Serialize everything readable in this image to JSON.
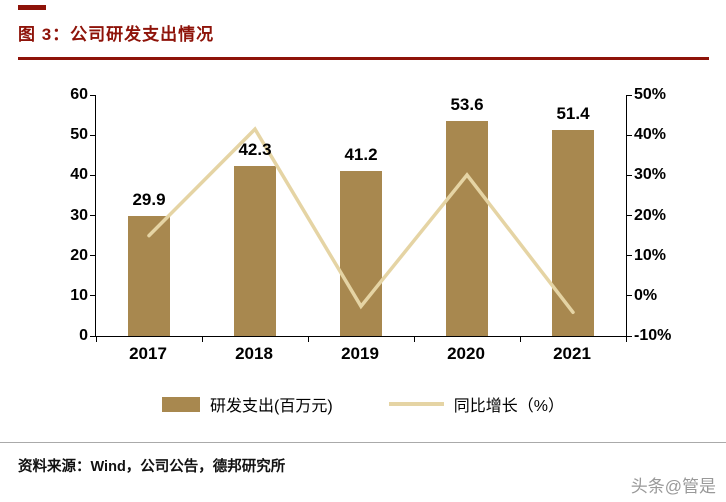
{
  "header": {
    "title": "图 3：公司研发支出情况"
  },
  "chart_data": {
    "type": "combo-bar-line",
    "title": "公司研发支出情况",
    "categories": [
      "2017",
      "2018",
      "2019",
      "2020",
      "2021"
    ],
    "series": [
      {
        "name": "研发支出(百万元)",
        "type": "bar",
        "axis": "left",
        "values": [
          29.9,
          42.3,
          41.2,
          53.6,
          51.4
        ],
        "data_labels": [
          "29.9",
          "42.3",
          "41.2",
          "53.6",
          "51.4"
        ],
        "color": "#A8884F"
      },
      {
        "name": "同比增长（%）",
        "type": "line",
        "axis": "right",
        "values": [
          15.0,
          41.5,
          -2.6,
          30.1,
          -4.1
        ],
        "color": "#E5D4A4"
      }
    ],
    "left_axis": {
      "min": 0,
      "max": 60,
      "step": 10,
      "ticks": [
        "0",
        "10",
        "20",
        "30",
        "40",
        "50",
        "60"
      ]
    },
    "right_axis": {
      "min": -10,
      "max": 50,
      "step": 10,
      "ticks": [
        "-10%",
        "0%",
        "10%",
        "20%",
        "30%",
        "40%",
        "50%"
      ]
    },
    "grid": false,
    "legend_position": "bottom"
  },
  "footer": {
    "source": "资料来源：Wind，公司公告，德邦研究所",
    "watermark": "头条@管是"
  },
  "colors": {
    "title": "#8E1309",
    "bar": "#A8884F",
    "line": "#E5D4A4",
    "axis": "#000000"
  }
}
